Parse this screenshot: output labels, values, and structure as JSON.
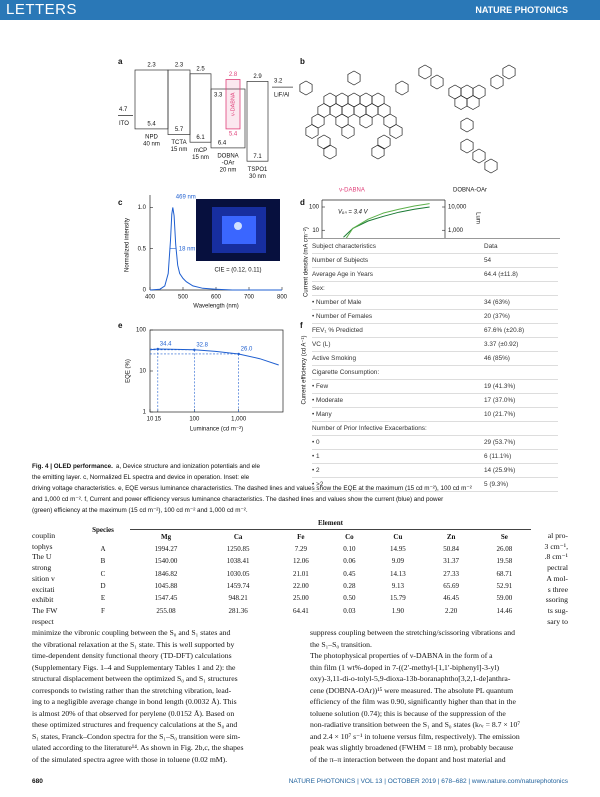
{
  "header": {
    "section": "LETTERS",
    "journal": "NATURE PHOTONICS"
  },
  "figure": {
    "panel_a": {
      "label": "a",
      "ito": {
        "name": "ITO",
        "level": 4.7
      },
      "layers": [
        {
          "name": [
            "NPD",
            "40 nm"
          ],
          "lumo": 2.3,
          "homo": 5.4
        },
        {
          "name": [
            "TCTA",
            "15 nm"
          ],
          "lumo": 2.3,
          "homo": 5.7
        },
        {
          "name": [
            "mCP",
            "15 nm"
          ],
          "lumo": 2.5,
          "homo": 6.1
        },
        {
          "name": [
            "DOBNA",
            "-OAr",
            "20 nm"
          ],
          "lumo": 3.3,
          "homo": 6.4
        },
        {
          "name": [
            "TSPO1",
            "30 nm"
          ],
          "lumo": 2.9,
          "homo": 7.1
        }
      ],
      "dopant": {
        "name": "ν-DABNA",
        "lumo": 2.8,
        "homo": 5.4,
        "color": "#e0407a"
      },
      "cathode": {
        "name": "LiF/Al",
        "level": 3.2
      }
    },
    "panel_b": {
      "label": "b",
      "molecules": [
        "ν-DABNA",
        "DOBNA-OAr"
      ],
      "colors": [
        "#e0407a",
        "#222222"
      ]
    },
    "panel_c": {
      "type": "line",
      "label": "c",
      "y_label": "Normalized intensity",
      "x_label": "Wavelength (nm)",
      "x": [
        400,
        430,
        445,
        455,
        462,
        466,
        469,
        473,
        478,
        484,
        490,
        500,
        510,
        530,
        560,
        600,
        650,
        800
      ],
      "values": [
        0,
        0.01,
        0.05,
        0.2,
        0.6,
        0.92,
        1.0,
        0.9,
        0.55,
        0.3,
        0.2,
        0.14,
        0.1,
        0.05,
        0.02,
        0.01,
        0,
        0
      ],
      "color": "#1f5fd0",
      "xlim": [
        400,
        800
      ],
      "xticks": [
        400,
        500,
        600,
        700,
        800
      ],
      "ylim": [
        0,
        1.15
      ],
      "yticks": [
        0,
        0.5,
        {
          "value": 1,
          "label": "1.0"
        }
      ],
      "annotations": {
        "peak": "469 nm",
        "fwhm": "18 nm",
        "cie": "CIE = (0.12, 0.11)"
      }
    },
    "panel_d": {
      "type": "line",
      "label": "d",
      "y_label": "Current density (mA cm⁻²)",
      "y2_label": "Lum",
      "log_scale": true,
      "xlim": [
        2,
        10
      ],
      "ylim": [
        0.01,
        200
      ],
      "yticks": [
        100,
        10
      ],
      "y2lim": [
        1,
        20000
      ],
      "y2ticks": [
        {
          "value": 10000,
          "label": "10,000"
        },
        {
          "value": 1000,
          "label": "1,000"
        }
      ],
      "annotation": "Vₒₙ = 3.4 V",
      "x": [
        3.4,
        4,
        5,
        6,
        7,
        8,
        9
      ],
      "series": [
        {
          "color": "#1a7a34",
          "values": [
            5,
            12,
            25,
            40,
            60,
            80,
            100
          ]
        },
        {
          "color": "#5cb04a",
          "axis": "y2",
          "values": [
            300,
            1200,
            3000,
            5500,
            8000,
            11000,
            14000
          ]
        }
      ]
    },
    "panel_e": {
      "type": "line",
      "label": "e",
      "y_label": "EQE (%)",
      "x_label": "Luminance (cd m⁻²)",
      "log_scale": true,
      "xlim": [
        10,
        10000
      ],
      "xticks": [
        10,
        15,
        100,
        {
          "value": 1000,
          "label": "1,000"
        }
      ],
      "ylim": [
        1,
        100
      ],
      "yticks": [
        1,
        10,
        100
      ],
      "x": [
        10,
        15,
        30,
        100,
        300,
        1000,
        3000,
        8000
      ],
      "values": [
        33,
        34.4,
        34,
        32.8,
        30,
        26.0,
        20,
        14
      ],
      "color": "#1f5fd0",
      "markers": {
        "x": [
          15,
          100,
          1000
        ],
        "values": [
          34.4,
          32.8,
          26.0
        ],
        "value_labels": [
          "34.4",
          "32.8",
          "26.0"
        ]
      }
    },
    "panel_f": {
      "label": "f",
      "y_label": "Current efficiency (cd A⁻¹)"
    },
    "caption": {
      "title": "Fig. 4 | OLED performance.",
      "lines": [
        "a, Device structure and ionization potentials and ele",
        "the emitting layer. c, Normalized EL spectra and device in operation. Inset: ele",
        "driving voltage characteristics. e, EQE versus luminance characteristics. The dashed lines and values show the EQE at the maximum (15 cd m⁻²), 100 cd m⁻²",
        "and 1,000 cd m⁻². f, Current and power efficiency versus luminance characteristics. The dashed lines and values show the current (blue) and power",
        "(green) efficiency at the maximum (15 cd m⁻²), 100 cd m⁻² and 1,000 cd m⁻²."
      ]
    }
  },
  "table_subjects": {
    "header": [
      "Subject characteristics",
      "Data"
    ],
    "rows": [
      [
        "Number of Subjects",
        "54"
      ],
      [
        "Average Age in Years",
        "64.4 (±11.8)"
      ],
      [
        "Sex:"
      ],
      [
        "• Number of Male",
        "34 (63%)"
      ],
      [
        "• Number of Females",
        "20 (37%)"
      ],
      [
        "FEV₁ % Predicted",
        "67.6% (±20.8)"
      ],
      [
        "VC (L)",
        "3.37 (±0.92)"
      ],
      [
        "Active Smoking",
        "46 (85%)"
      ],
      [
        "Cigarette Consumption:"
      ],
      [
        "• Few",
        "19 (41.3%)"
      ],
      [
        "• Moderate",
        "17 (37.0%)"
      ],
      [
        "• Many",
        "10 (21.7%)"
      ],
      [
        "Number of Prior Infective Exacerbations:"
      ],
      [
        "• 0",
        "29 (53.7%)"
      ],
      [
        "• 1",
        "6 (11.1%)"
      ],
      [
        "• 2",
        "14 (25.9%)"
      ],
      [
        "• >2",
        "5 (9.3%)"
      ]
    ]
  },
  "table_elements": {
    "species": "Species",
    "element": "Element",
    "columns": [
      "Mg",
      "Ca",
      "Fe",
      "Co",
      "Cu",
      "Zn",
      "Se"
    ],
    "rows": [
      [
        "A",
        "1994.27",
        "1250.85",
        "7.29",
        "0.10",
        "14.95",
        "50.84",
        "26.08"
      ],
      [
        "B",
        "1540.00",
        "1038.41",
        "12.06",
        "0.06",
        "9.09",
        "31.37",
        "19.58"
      ],
      [
        "C",
        "1846.82",
        "1030.05",
        "21.01",
        "0.45",
        "14.13",
        "27.33",
        "68.71"
      ],
      [
        "D",
        "1045.88",
        "1459.74",
        "22.00",
        "0.28",
        "9.13",
        "65.69",
        "52.91"
      ],
      [
        "E",
        "1547.45",
        "948.21",
        "25.00",
        "0.50",
        "15.79",
        "46.45",
        "59.00"
      ],
      [
        "F",
        "255.08",
        "281.36",
        "64.41",
        "0.03",
        "1.90",
        "2.20",
        "14.46"
      ]
    ]
  },
  "body": {
    "fragments_left": [
      "couplin",
      "tophys",
      "The U",
      "strong",
      "sition v",
      "excitati",
      "exhibit",
      "The FW",
      "respect"
    ],
    "fragments_right": [
      "al pro-",
      "3 cm⁻¹,",
      ".8 cm⁻¹",
      "pectral",
      "A mol-",
      "s three",
      "ssoring",
      "ts sug-",
      "sary to"
    ],
    "left": [
      "minimize the vibronic coupling between the S₀ and S₁ states and",
      "the vibrational relaxation at the S₁ state. This is well supported by",
      "time-dependent density functional theory (TD-DFT) calculations",
      "(Supplementary Figs. 1–4 and Supplementary Tables 1 and 2): the",
      "structural displacement between the optimized S₀ and S₁ structures",
      "corresponds to twisting rather than the stretching vibration, lead-",
      "ing to a negligible average change in bond length (0.0032 Å). This",
      "is almost 20% of that observed for perylene (0.0152 Å). Based on",
      "these optimized structures and frequency calculations at the S₀ and",
      "S₁ states, Franck–Condon spectra for the S₁–S₀ transition were sim-",
      "ulated according to the literature¹⁴. As shown in Fig. 2b,c, the shapes",
      "of the simulated spectra agree with those in toluene (0.02 mM)."
    ],
    "right": [
      "suppress coupling between the stretching/scissoring vibrations and",
      "the S₁–S₀ transition.",
      "    The photophysical properties of ν-DABNA in the form of a",
      "thin film (1 wt%-doped in 7-((2′-methyl-[1,1′-biphenyl]-3-yl)",
      "oxy)-3,11-di-o-tolyl-5,9-dioxa-13b-boranaphtho[3,2,1-de]anthra-",
      "cene (DOBNA-OAr))¹⁵ were measured. The absolute PL quantum",
      "efficiency of the film was 0.90, significantly higher than that in the",
      "toluene solution (0.74); this is because of the suppression of the",
      "non-radiative transition between the S₁ and S₀ states (kₙᵣ = 8.7 × 10⁷",
      "and 2.4 × 10⁷ s⁻¹ in toluene versus film, respectively). The emission",
      "peak was slightly broadened (FWHM = 18 nm), probably because",
      "of the π–π interaction between the dopant and host material and"
    ]
  },
  "footer": {
    "page": "680",
    "info": "NATURE PHOTONICS | VOL 13 | OCTOBER 2019 | 678–682 | www.nature.com/naturephotonics"
  }
}
